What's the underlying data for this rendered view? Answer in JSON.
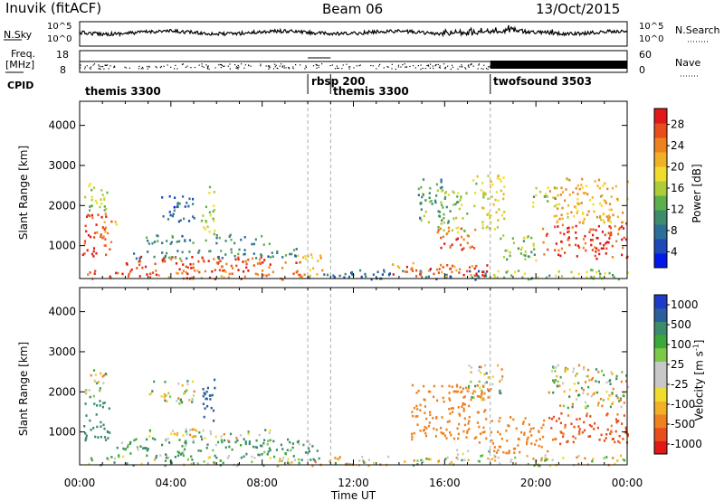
{
  "header": {
    "station": "Inuvik (fitACF)",
    "beam": "Beam 06",
    "date": "13/Oct/2015"
  },
  "summary": {
    "nsky_label": "N.Sky",
    "nsky_ticks": [
      "10^5",
      "10^0"
    ],
    "nsearch_label": "N.Search",
    "nsearch_ticks": [
      "10^5",
      "10^0"
    ],
    "freq_label": "Freq.",
    "freq_unit": "[MHz]",
    "freq_ticks": [
      "18",
      "8"
    ],
    "nave_label": "Nave",
    "nave_ticks": [
      "60",
      "0"
    ],
    "cpid_label": "CPID"
  },
  "cpid_segments": [
    {
      "name": "themis 3300",
      "start_h": 0.0
    },
    {
      "name": "rbsp 200",
      "start_h": 10.0
    },
    {
      "name": "themis 3300",
      "start_h": 11.0
    },
    {
      "name": "twofsound 3503",
      "start_h": 18.0
    }
  ],
  "chart_data": [
    {
      "type": "heatmap",
      "title": "",
      "xlabel": "",
      "ylabel": "Slant Range [km]",
      "xlim": [
        0,
        24
      ],
      "ylim": [
        180,
        4600
      ],
      "yticks": [
        1000,
        2000,
        3000,
        4000
      ],
      "colorbar": {
        "label": "Power [dB]",
        "ticks": [
          "28",
          "24",
          "20",
          "16",
          "12",
          "8",
          "4"
        ],
        "range": [
          0,
          30
        ],
        "colors": [
          "#0018e8",
          "#1c48b8",
          "#2c6e98",
          "#3d8c6c",
          "#5cb04c",
          "#aecb38",
          "#f0dc2c",
          "#f2b026",
          "#ef8220",
          "#e84e1c",
          "#e01818"
        ]
      },
      "regions": [
        {
          "h0": 0.1,
          "h1": 1.3,
          "r0": 750,
          "r1": 1850,
          "v": 27
        },
        {
          "h0": 0.1,
          "h1": 1.2,
          "r0": 1900,
          "r1": 2650,
          "v": 15
        },
        {
          "h0": 1.0,
          "h1": 1.6,
          "r0": 1100,
          "r1": 1650,
          "v": 22
        },
        {
          "h0": 0.3,
          "h1": 10.0,
          "r0": 180,
          "r1": 420,
          "v": 25
        },
        {
          "h0": 2.0,
          "h1": 9.5,
          "r0": 400,
          "r1": 750,
          "v": 26
        },
        {
          "h0": 2.3,
          "h1": 9.6,
          "r0": 700,
          "r1": 950,
          "v": 9
        },
        {
          "h0": 2.8,
          "h1": 8.3,
          "r0": 1050,
          "r1": 1300,
          "v": 9
        },
        {
          "h0": 3.5,
          "h1": 5.0,
          "r0": 1600,
          "r1": 2300,
          "v": 6
        },
        {
          "h0": 5.3,
          "h1": 5.9,
          "r0": 1300,
          "r1": 2500,
          "v": 15
        },
        {
          "h0": 9.5,
          "h1": 10.6,
          "r0": 250,
          "r1": 850,
          "v": 20
        },
        {
          "h0": 10.0,
          "h1": 17.8,
          "r0": 180,
          "r1": 420,
          "v": 7
        },
        {
          "h0": 13.5,
          "h1": 17.5,
          "r0": 250,
          "r1": 600,
          "v": 24
        },
        {
          "h0": 14.8,
          "h1": 16.0,
          "r0": 1400,
          "r1": 2700,
          "v": 11
        },
        {
          "h0": 15.8,
          "h1": 17.0,
          "r0": 1300,
          "r1": 2500,
          "v": 13
        },
        {
          "h0": 15.6,
          "h1": 17.3,
          "r0": 900,
          "r1": 1500,
          "v": 26
        },
        {
          "h0": 17.2,
          "h1": 18.6,
          "r0": 1400,
          "r1": 2800,
          "v": 17
        },
        {
          "h0": 17.0,
          "h1": 18.0,
          "r0": 250,
          "r1": 550,
          "v": 27
        },
        {
          "h0": 18.0,
          "h1": 24.0,
          "r0": 180,
          "r1": 430,
          "v": 14
        },
        {
          "h0": 18.4,
          "h1": 20.0,
          "r0": 600,
          "r1": 1300,
          "v": 14
        },
        {
          "h0": 19.8,
          "h1": 21.0,
          "r0": 2000,
          "r1": 2500,
          "v": 14
        },
        {
          "h0": 20.2,
          "h1": 24.0,
          "r0": 700,
          "r1": 1600,
          "v": 27
        },
        {
          "h0": 20.5,
          "h1": 24.0,
          "r0": 1600,
          "r1": 2700,
          "v": 20
        }
      ]
    },
    {
      "type": "heatmap",
      "title": "",
      "xlabel": "Time UT",
      "ylabel": "Slant Range [km]",
      "xlim": [
        0,
        24
      ],
      "ylim": [
        180,
        4600
      ],
      "yticks": [
        1000,
        2000,
        3000,
        4000
      ],
      "xticks": [
        "00:00",
        "04:00",
        "08:00",
        "12:00",
        "16:00",
        "20:00",
        "00:00"
      ],
      "colorbar": {
        "label": "Velocity [m s",
        "label_superscript": "-1",
        "label_close": "]",
        "ticks": [
          "1000",
          "500",
          "100",
          "25",
          "-25",
          "-100",
          "-500",
          "-1000"
        ],
        "range": [
          -1000,
          1000
        ],
        "colors": [
          "#e01818",
          "#e84e1c",
          "#ef8220",
          "#f2b026",
          "#f0dc2c",
          "#c8c8c8",
          "#c8c8c8",
          "#7cc848",
          "#3ca83c",
          "#3c8c6c",
          "#2c5e9c",
          "#1c3cc8"
        ]
      },
      "regions": [
        {
          "h0": 0.1,
          "h1": 1.3,
          "r0": 800,
          "r1": 1800,
          "v": 300
        },
        {
          "h0": 0.2,
          "h1": 1.2,
          "r0": 1900,
          "r1": 2600,
          "v": 0
        },
        {
          "h0": 0.3,
          "h1": 9.8,
          "r0": 180,
          "r1": 420,
          "v": 60
        },
        {
          "h0": 1.5,
          "h1": 9.5,
          "r0": 400,
          "r1": 850,
          "v": 150
        },
        {
          "h0": 3.0,
          "h1": 8.5,
          "r0": 800,
          "r1": 1100,
          "v": 0
        },
        {
          "h0": 3.0,
          "h1": 5.0,
          "r0": 1700,
          "r1": 2300,
          "v": 0
        },
        {
          "h0": 5.3,
          "h1": 5.9,
          "r0": 1300,
          "r1": 2500,
          "v": 800
        },
        {
          "h0": 9.5,
          "h1": 10.5,
          "r0": 250,
          "r1": 850,
          "v": 150
        },
        {
          "h0": 10.0,
          "h1": 16.5,
          "r0": 180,
          "r1": 420,
          "v": -40
        },
        {
          "h0": 14.5,
          "h1": 17.8,
          "r0": 700,
          "r1": 2200,
          "v": -300
        },
        {
          "h0": 17.0,
          "h1": 18.6,
          "r0": 1800,
          "r1": 2700,
          "v": 0
        },
        {
          "h0": 16.5,
          "h1": 18.0,
          "r0": 250,
          "r1": 600,
          "v": 60
        },
        {
          "h0": 18.0,
          "h1": 24.0,
          "r0": 180,
          "r1": 450,
          "v": -40
        },
        {
          "h0": 18.0,
          "h1": 20.5,
          "r0": 500,
          "r1": 1400,
          "v": -300
        },
        {
          "h0": 20.5,
          "h1": 24.0,
          "r0": 700,
          "r1": 1500,
          "v": -600
        },
        {
          "h0": 20.5,
          "h1": 24.0,
          "r0": 1600,
          "r1": 2700,
          "v": -10
        }
      ]
    }
  ]
}
